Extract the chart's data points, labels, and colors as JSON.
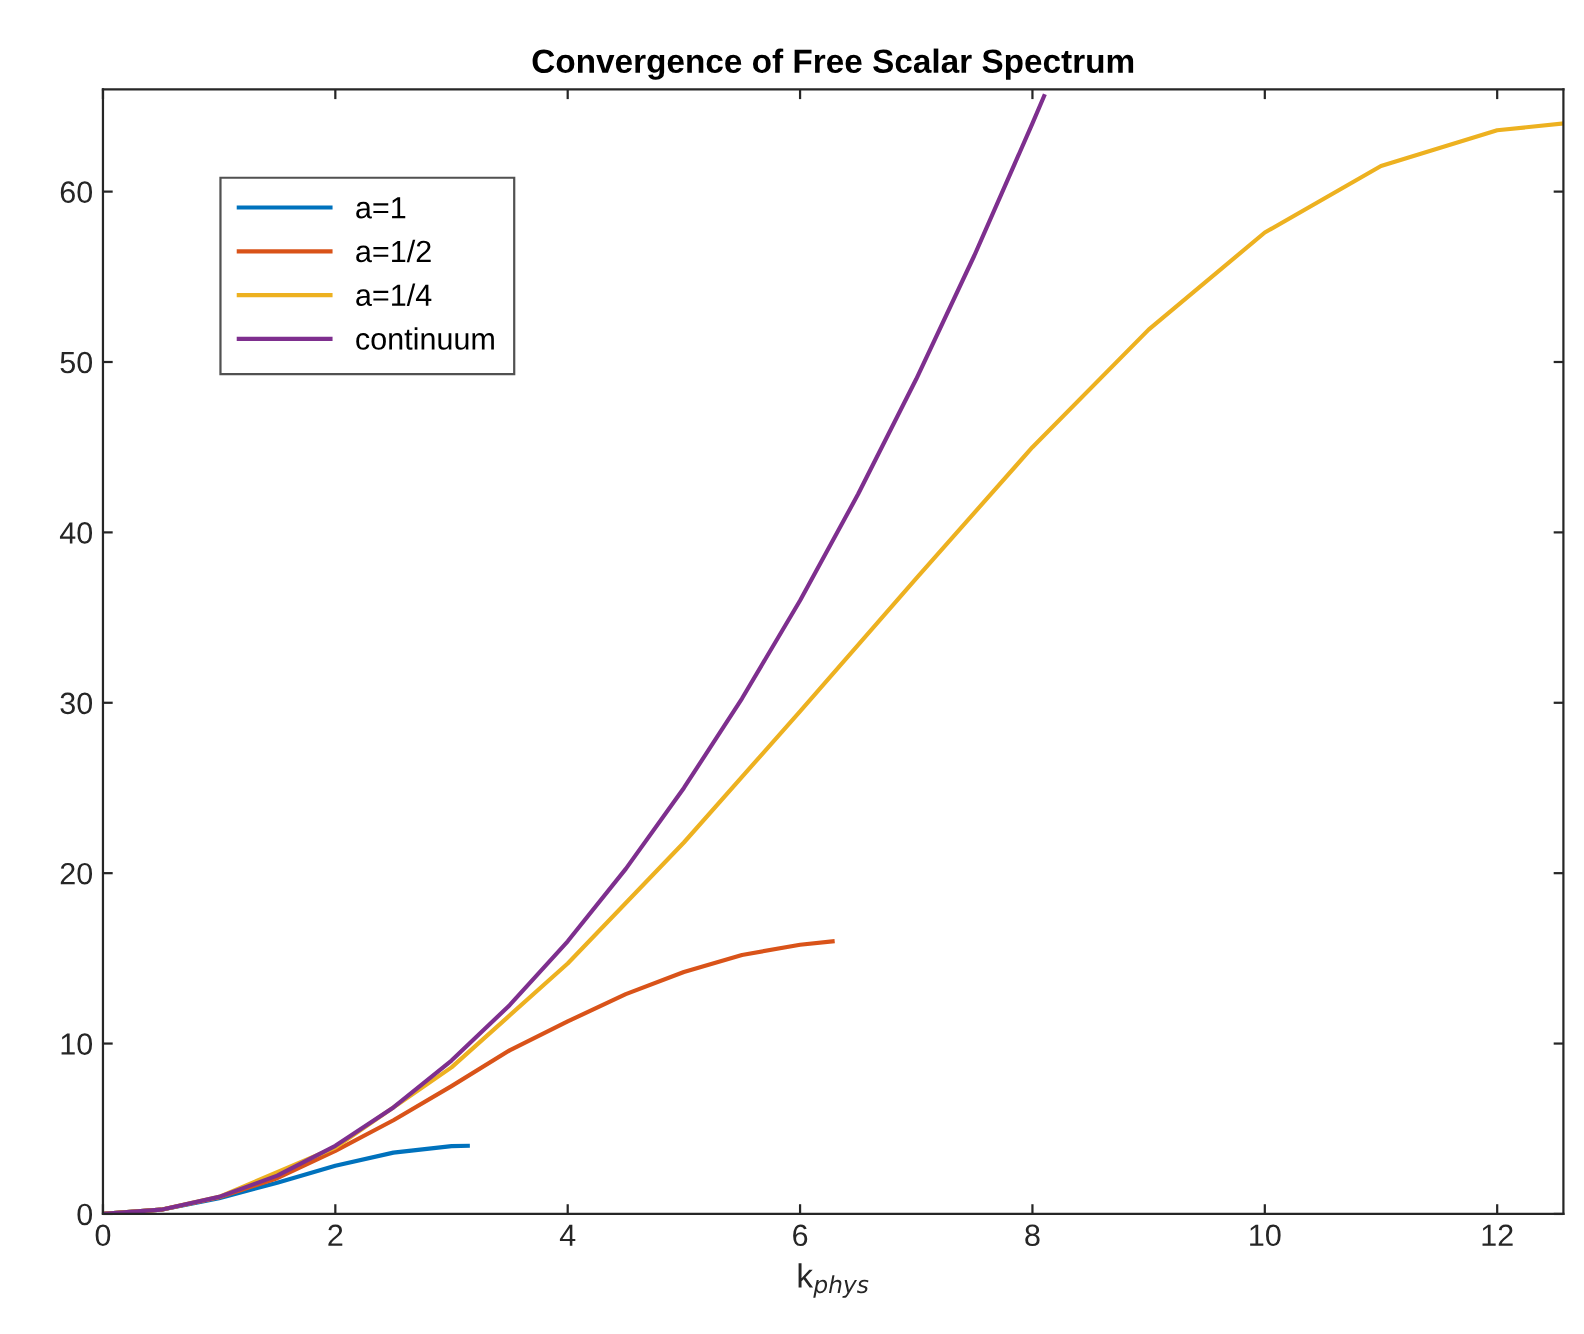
{
  "chart_data": {
    "type": "line",
    "title": "Convergence of Free Scalar Spectrum",
    "xlabel": "k$_{phys}$",
    "xlim": [
      0,
      12.57
    ],
    "ylim": [
      0,
      66
    ],
    "xticks": [
      0,
      2,
      4,
      6,
      8,
      10,
      12
    ],
    "yticks": [
      0,
      10,
      20,
      30,
      40,
      50,
      60
    ],
    "grid": false,
    "legend": "top left",
    "marker": "none",
    "line_style": "solid",
    "series": [
      {
        "name": "a=1",
        "color": "#0072bd",
        "x": [
          0,
          0.5,
          1,
          1.5,
          2,
          2.5,
          3,
          3.14
        ],
        "values": [
          0,
          0.25,
          0.92,
          1.83,
          2.83,
          3.6,
          3.98,
          4
        ]
      },
      {
        "name": "a=1/2",
        "color": "#d95319",
        "x": [
          0,
          0.5,
          1,
          1.5,
          2,
          2.5,
          3,
          3.5,
          4,
          4.5,
          5,
          5.5,
          6,
          6.28
        ],
        "values": [
          0,
          0.25,
          0.98,
          2.1,
          3.7,
          5.5,
          7.5,
          9.6,
          11.3,
          12.9,
          14.2,
          15.2,
          15.8,
          16
        ]
      },
      {
        "name": "a=1/4",
        "color": "#edb120",
        "x": [
          0,
          0.5,
          1,
          2,
          3,
          4,
          5,
          6,
          7,
          8,
          9,
          10,
          11,
          12,
          12.57
        ],
        "values": [
          0,
          0.25,
          1,
          3.9,
          8.6,
          14.7,
          21.8,
          29.5,
          37.3,
          45,
          51.9,
          57.6,
          61.5,
          63.6,
          64
        ]
      },
      {
        "name": "continuum",
        "color": "#7e2f8e",
        "x": [
          0,
          0.5,
          1,
          1.5,
          2,
          2.5,
          3,
          3.5,
          4,
          4.5,
          5,
          5.5,
          6,
          6.5,
          7,
          7.5,
          8,
          8.1
        ],
        "values": [
          0,
          0.25,
          1,
          2.25,
          4,
          6.25,
          9,
          12.25,
          16,
          20.25,
          25,
          30.25,
          36,
          42.25,
          49,
          56.25,
          64,
          65.6
        ]
      }
    ]
  }
}
